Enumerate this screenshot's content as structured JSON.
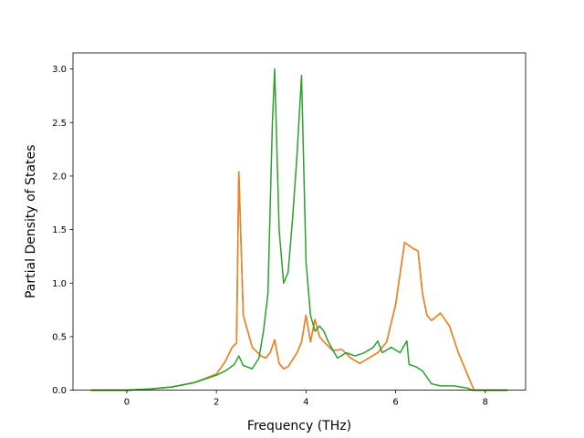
{
  "chart_data": {
    "type": "line",
    "title": "",
    "xlabel": "Frequency (THz)",
    "ylabel": "Partial Density of States",
    "xlim": [
      -1.2,
      8.9
    ],
    "ylim": [
      0.0,
      3.15
    ],
    "xticks": [
      0,
      2,
      4,
      6,
      8
    ],
    "yticks": [
      0.0,
      0.5,
      1.0,
      1.5,
      2.0,
      2.5,
      3.0
    ],
    "xtick_labels": [
      "0",
      "2",
      "4",
      "6",
      "8"
    ],
    "ytick_labels": [
      "0.0",
      "0.5",
      "1.0",
      "1.5",
      "2.0",
      "2.5",
      "3.0"
    ],
    "grid": false,
    "legend": "none",
    "series": [
      {
        "color": "#1f77b4",
        "x": [
          -0.8,
          0,
          0.5,
          1.0,
          1.5,
          2.0,
          2.2,
          2.35,
          2.45,
          2.5,
          2.6,
          2.8,
          3.0,
          3.1,
          3.2,
          3.3,
          3.4,
          3.5,
          3.6,
          3.8,
          3.9,
          4.0,
          4.1,
          4.2,
          4.3,
          4.4,
          4.6,
          4.8,
          5.0,
          5.2,
          5.4,
          5.6,
          5.8,
          6.0,
          6.2,
          6.4,
          6.5,
          6.6,
          6.7,
          6.8,
          7.0,
          7.2,
          7.4,
          7.6,
          7.7,
          7.75,
          8.5
        ],
        "y": [
          0.0,
          0.0,
          0.01,
          0.03,
          0.07,
          0.15,
          0.27,
          0.4,
          0.44,
          2.04,
          0.7,
          0.4,
          0.32,
          0.3,
          0.35,
          0.47,
          0.25,
          0.2,
          0.22,
          0.35,
          0.45,
          0.7,
          0.45,
          0.66,
          0.5,
          0.45,
          0.37,
          0.38,
          0.3,
          0.25,
          0.3,
          0.35,
          0.45,
          0.8,
          1.38,
          1.32,
          1.3,
          0.9,
          0.7,
          0.65,
          0.72,
          0.6,
          0.35,
          0.15,
          0.05,
          0.0,
          0.0
        ]
      },
      {
        "color": "#ff7f0e",
        "x": [
          -0.8,
          0,
          0.5,
          1.0,
          1.5,
          2.0,
          2.2,
          2.35,
          2.45,
          2.5,
          2.6,
          2.8,
          3.0,
          3.1,
          3.2,
          3.3,
          3.4,
          3.5,
          3.6,
          3.8,
          3.9,
          4.0,
          4.1,
          4.2,
          4.3,
          4.4,
          4.6,
          4.8,
          5.0,
          5.2,
          5.4,
          5.6,
          5.8,
          6.0,
          6.2,
          6.4,
          6.5,
          6.6,
          6.7,
          6.8,
          7.0,
          7.2,
          7.4,
          7.6,
          7.7,
          7.75,
          8.5
        ],
        "y": [
          0.0,
          0.0,
          0.01,
          0.03,
          0.07,
          0.15,
          0.27,
          0.4,
          0.44,
          2.04,
          0.7,
          0.4,
          0.32,
          0.3,
          0.35,
          0.47,
          0.25,
          0.2,
          0.22,
          0.35,
          0.45,
          0.7,
          0.45,
          0.66,
          0.5,
          0.45,
          0.37,
          0.38,
          0.3,
          0.25,
          0.3,
          0.35,
          0.45,
          0.8,
          1.38,
          1.32,
          1.3,
          0.9,
          0.7,
          0.65,
          0.72,
          0.6,
          0.35,
          0.15,
          0.05,
          0.0,
          0.0
        ]
      },
      {
        "color": "#2ca02c",
        "x": [
          -0.8,
          0,
          0.5,
          1.0,
          1.5,
          2.0,
          2.2,
          2.4,
          2.5,
          2.6,
          2.8,
          2.95,
          3.05,
          3.15,
          3.25,
          3.3,
          3.4,
          3.5,
          3.6,
          3.7,
          3.8,
          3.9,
          4.0,
          4.1,
          4.2,
          4.3,
          4.4,
          4.5,
          4.7,
          4.9,
          5.1,
          5.3,
          5.5,
          5.6,
          5.7,
          5.9,
          6.1,
          6.25,
          6.3,
          6.45,
          6.6,
          6.8,
          7.0,
          7.3,
          7.6,
          7.7,
          8.5
        ],
        "y": [
          0.0,
          0.0,
          0.01,
          0.03,
          0.07,
          0.14,
          0.18,
          0.24,
          0.32,
          0.23,
          0.2,
          0.3,
          0.55,
          0.9,
          2.5,
          3.0,
          1.5,
          1.0,
          1.1,
          1.6,
          2.2,
          2.94,
          1.2,
          0.7,
          0.55,
          0.6,
          0.55,
          0.45,
          0.3,
          0.35,
          0.32,
          0.35,
          0.4,
          0.46,
          0.35,
          0.4,
          0.35,
          0.46,
          0.24,
          0.22,
          0.18,
          0.06,
          0.04,
          0.04,
          0.02,
          0.0,
          0.0
        ]
      }
    ]
  }
}
